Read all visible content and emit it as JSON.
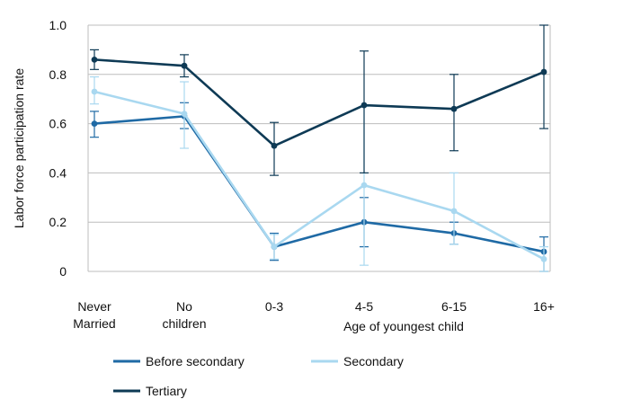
{
  "chart_data": {
    "type": "line",
    "title": "",
    "xlabel": "Age of youngest child",
    "ylabel": "Labor force participation rate",
    "categories": [
      "Never|Married",
      "No|children",
      "0-3",
      "4-5",
      "6-15",
      "16+"
    ],
    "ylim": [
      0,
      1.0
    ],
    "yticks": [
      "0",
      "0.2",
      "0.4",
      "0.6",
      "0.8",
      "1.0"
    ],
    "grid": true,
    "legend_position": "bottom",
    "series": [
      {
        "name": "Before secondary",
        "color": "#1f6aa5",
        "values": [
          0.6,
          0.63,
          0.1,
          0.2,
          0.155,
          0.08
        ],
        "err_low": [
          0.545,
          0.58,
          0.045,
          0.1,
          0.11,
          0.0
        ],
        "err_high": [
          0.65,
          0.685,
          0.155,
          0.3,
          0.2,
          0.14
        ]
      },
      {
        "name": "Secondary",
        "color": "#a9d8f0",
        "values": [
          0.73,
          0.64,
          0.1,
          0.35,
          0.245,
          0.05
        ],
        "err_low": [
          0.68,
          0.5,
          0.05,
          0.025,
          0.11,
          0.0
        ],
        "err_high": [
          0.79,
          0.77,
          0.15,
          0.67,
          0.4,
          0.1
        ]
      },
      {
        "name": "Tertiary",
        "color": "#0e3a55",
        "values": [
          0.86,
          0.835,
          0.51,
          0.675,
          0.66,
          0.81
        ],
        "err_low": [
          0.82,
          0.79,
          0.39,
          0.4,
          0.49,
          0.58
        ],
        "err_high": [
          0.9,
          0.88,
          0.605,
          0.895,
          0.8,
          1.0
        ]
      }
    ]
  }
}
